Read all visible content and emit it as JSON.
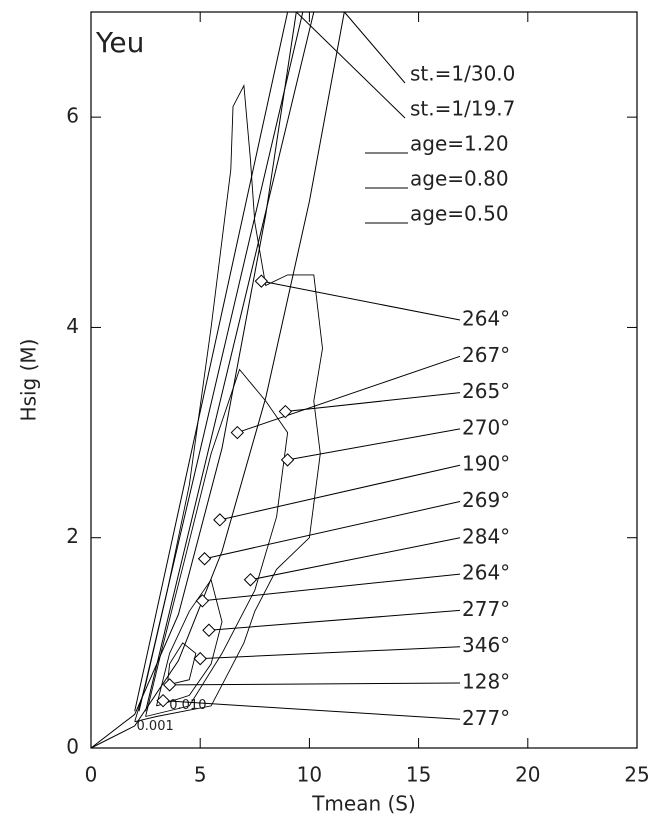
{
  "chart_data": {
    "type": "line",
    "title": "Yeu",
    "x_label": "Tmean (S)",
    "y_label": "Hsig (M)",
    "xlim": [
      0,
      25
    ],
    "xticks": [
      0,
      5,
      10,
      15,
      20,
      25
    ],
    "ylim": [
      0,
      7
    ],
    "yticks": [
      0,
      2,
      4,
      6
    ],
    "color": "#000000",
    "series": [
      {
        "name": "st.=1/30.0",
        "x": [
          0,
          2,
          4,
          6,
          8,
          10,
          11.6
        ],
        "values": [
          0,
          0.21,
          0.83,
          1.87,
          3.33,
          5.2,
          7.0
        ]
      },
      {
        "name": "st.=1/19.7",
        "x": [
          0,
          2,
          4,
          6,
          8,
          9.4
        ],
        "values": [
          0,
          0.32,
          1.27,
          2.85,
          5.07,
          7.0
        ]
      },
      {
        "name": "age=1.20",
        "x": [
          2.5,
          10.2
        ],
        "values": [
          0.35,
          7.0
        ]
      },
      {
        "name": "age=0.80",
        "x": [
          2.2,
          9.7
        ],
        "values": [
          0.35,
          7.0
        ]
      },
      {
        "name": "age=0.50",
        "x": [
          2.0,
          9.0
        ],
        "values": [
          0.35,
          7.0
        ]
      }
    ],
    "contours": [
      {
        "label": "0.001",
        "x": [
          2.0,
          3.0,
          5.5,
          6.5,
          7.0,
          7.5,
          8.5,
          10.0,
          10.5,
          10.2,
          10.6,
          10.2,
          9.0,
          8.0,
          7.5,
          7.3,
          7.0,
          6.5,
          6.4,
          5.5,
          4.5,
          3.5,
          2.5,
          2.0
        ],
        "values": [
          0.25,
          0.3,
          0.4,
          0.8,
          1.0,
          1.3,
          1.7,
          2.0,
          2.8,
          3.3,
          3.8,
          4.5,
          4.5,
          4.4,
          5.0,
          5.6,
          6.3,
          6.1,
          5.5,
          4.0,
          2.5,
          1.5,
          0.6,
          0.25
        ]
      },
      {
        "x": [
          2.5,
          4.5,
          6.0,
          7.5,
          8.5,
          9.0,
          8.0,
          6.8,
          5.5,
          4.3,
          3.2,
          2.5
        ],
        "values": [
          0.3,
          0.4,
          0.9,
          1.5,
          2.2,
          3.0,
          3.3,
          3.6,
          2.8,
          1.8,
          0.9,
          0.3
        ]
      },
      {
        "label": "0.010",
        "x": [
          3.0,
          4.5,
          5.5,
          6.0,
          5.5,
          4.5,
          3.6,
          3.0
        ],
        "values": [
          0.4,
          0.5,
          0.8,
          1.2,
          1.6,
          1.3,
          0.9,
          0.4
        ]
      },
      {
        "x": [
          3.5,
          4.5,
          4.8,
          4.2,
          3.6,
          3.5
        ],
        "values": [
          0.6,
          0.65,
          0.9,
          1.0,
          0.8,
          0.6
        ]
      }
    ],
    "points": [
      {
        "label": "264°",
        "x": 7.8,
        "y": 4.44
      },
      {
        "label": "267°",
        "x": 6.7,
        "y": 3.0
      },
      {
        "label": "265°",
        "x": 8.9,
        "y": 3.2
      },
      {
        "label": "270°",
        "x": 9.0,
        "y": 2.74
      },
      {
        "label": "190°",
        "x": 5.9,
        "y": 2.17
      },
      {
        "label": "269°",
        "x": 5.2,
        "y": 1.8
      },
      {
        "label": "284°",
        "x": 7.3,
        "y": 1.6
      },
      {
        "label": "264°",
        "x": 5.1,
        "y": 1.4
      },
      {
        "label": "277°",
        "x": 5.4,
        "y": 1.12
      },
      {
        "label": "346°",
        "x": 5.0,
        "y": 0.85
      },
      {
        "label": "128°",
        "x": 3.6,
        "y": 0.6
      },
      {
        "label": "277°",
        "x": 3.3,
        "y": 0.45
      }
    ]
  }
}
